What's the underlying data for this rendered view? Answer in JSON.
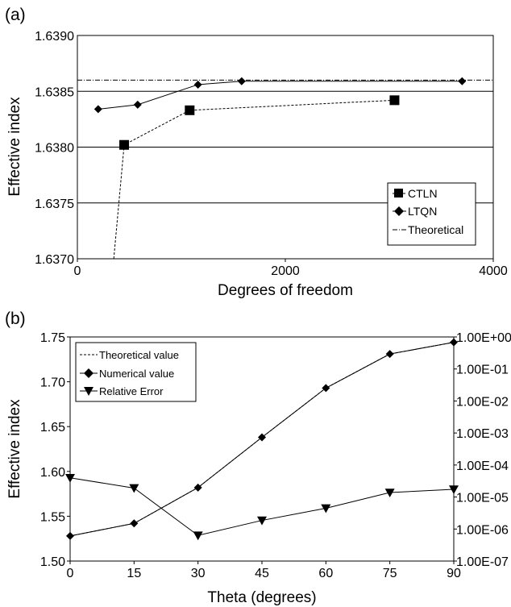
{
  "chart_data": [
    {
      "panel_label": "(a)",
      "type": "line",
      "xlabel": "Degrees of freedom",
      "ylabel": "Effective index",
      "xlim": [
        0,
        4000
      ],
      "ylim": [
        1.637,
        1.639
      ],
      "xticks": [
        "0",
        "2000",
        "4000"
      ],
      "yticks": [
        "1.6370",
        "1.6375",
        "1.6380",
        "1.6385",
        "1.6390"
      ],
      "grid": "horizontal",
      "legend": "bottom-right",
      "series": [
        {
          "name": "CTLN",
          "marker": "square",
          "style": "dashed",
          "x": [
            350,
            450,
            1080,
            3050
          ],
          "y": [
            1.637,
            1.63802,
            1.63833,
            1.63842
          ]
        },
        {
          "name": "LTQN",
          "marker": "diamond",
          "style": "solid",
          "x": [
            200,
            580,
            1160,
            1580,
            3700
          ],
          "y": [
            1.63834,
            1.63838,
            1.63856,
            1.63859,
            1.63859
          ]
        },
        {
          "name": "Theoretical",
          "marker": "none",
          "style": "dashdot",
          "x": [
            0,
            4000
          ],
          "y": [
            1.6386,
            1.6386
          ]
        }
      ]
    },
    {
      "panel_label": "(b)",
      "type": "line",
      "xlabel": "Theta (degrees)",
      "ylabel": "Effective index",
      "xlim": [
        0,
        90
      ],
      "ylim": [
        1.5,
        1.75
      ],
      "xticks": [
        "0",
        "15",
        "30",
        "45",
        "60",
        "75",
        "90"
      ],
      "yticks": [
        "1.50",
        "1.55",
        "1.60",
        "1.65",
        "1.70",
        "1.75"
      ],
      "y2_scale": "log",
      "y2lim_exp": [
        -7,
        0
      ],
      "y2ticks": [
        "1.00E-07",
        "1.00E-06",
        "1.00E-05",
        "1.00E-04",
        "1.00E-03",
        "1.00E-02",
        "1.00E-01",
        "1.00E+00"
      ],
      "legend": "top-left",
      "categories": [
        0,
        15,
        30,
        45,
        60,
        75,
        90
      ],
      "series": [
        {
          "name": "Theoretical value",
          "marker": "none",
          "style": "dashed",
          "axis": "left",
          "values": [
            1.528,
            1.542,
            1.582,
            1.638,
            1.693,
            1.731,
            1.744
          ]
        },
        {
          "name": "Numerical value",
          "marker": "diamond",
          "style": "solid",
          "axis": "left",
          "values": [
            1.528,
            1.542,
            1.582,
            1.638,
            1.693,
            1.731,
            1.744
          ]
        },
        {
          "name": "Relative Error",
          "marker": "triangle-down",
          "style": "solid",
          "axis": "right",
          "log10_values": [
            -4.4,
            -4.72,
            -6.2,
            -5.73,
            -5.35,
            -4.86,
            -4.76
          ]
        }
      ]
    }
  ]
}
